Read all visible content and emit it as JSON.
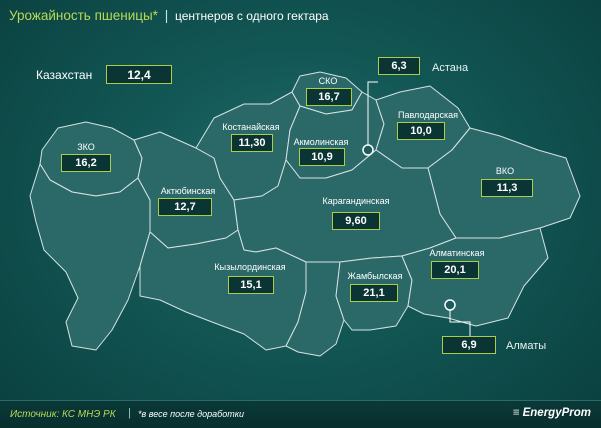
{
  "header": {
    "title": "Урожайность пшеницы*",
    "separator": "|",
    "subtitle": "центнеров с одного гектара"
  },
  "summary": {
    "label": "Казахстан",
    "value": "12,4"
  },
  "regions": [
    {
      "name": "ЗКО",
      "value": "16,2"
    },
    {
      "name": "Актюбинская",
      "value": "12,7"
    },
    {
      "name": "Костанайская",
      "value": "11,30"
    },
    {
      "name": "СКО",
      "value": "16,7"
    },
    {
      "name": "Акмолинская",
      "value": "10,9"
    },
    {
      "name": "Павлодарская",
      "value": "10,0"
    },
    {
      "name": "Карагандинская",
      "value": "9,60"
    },
    {
      "name": "ВКО",
      "value": "11,3"
    },
    {
      "name": "Кызылординская",
      "value": "15,1"
    },
    {
      "name": "Жамбылская",
      "value": "21,1"
    },
    {
      "name": "Алматинская",
      "value": "20,1"
    }
  ],
  "cities": [
    {
      "name": "Астана",
      "value": "6,3"
    },
    {
      "name": "Алматы",
      "value": "6,9"
    }
  ],
  "footer": {
    "source": "Источник: КС МНЭ РК",
    "separator": "|",
    "note": "*в весе после доработки",
    "brand": "EnergyProm"
  },
  "colors": {
    "background": "#125654",
    "region_fill": "#2a6968",
    "region_stroke": "#d5e2e2",
    "value_border": "#a9cf48",
    "title_accent": "#b9d955"
  }
}
